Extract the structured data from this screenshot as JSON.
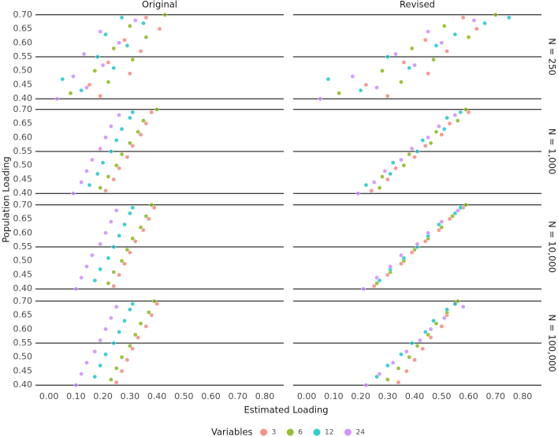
{
  "chart_data": {
    "type": "scatter",
    "xlabel": "Estimated Loading",
    "ylabel": "Population Loading",
    "columns": [
      "Original",
      "Revised"
    ],
    "xlim": [
      -0.05,
      0.87
    ],
    "ylim": [
      0.395,
      0.705
    ],
    "xticks": [
      {
        "value": 0,
        "label": "0.00"
      },
      {
        "value": 0.1,
        "label": "0.10"
      },
      {
        "value": 0.2,
        "label": "0.20"
      },
      {
        "value": 0.3,
        "label": "0.30"
      },
      {
        "value": 0.4,
        "label": "0.40"
      },
      {
        "value": 0.5,
        "label": "0.50"
      },
      {
        "value": 0.6,
        "label": "0.60"
      },
      {
        "value": 0.7,
        "label": "0.70"
      },
      {
        "value": 0.8,
        "label": "0.80"
      }
    ],
    "yticks": [
      {
        "value": 0.4,
        "label": "0.40"
      },
      {
        "value": 0.45,
        "label": "0.45"
      },
      {
        "value": 0.5,
        "label": "0.50"
      },
      {
        "value": 0.55,
        "label": "0.55"
      },
      {
        "value": 0.6,
        "label": "0.60"
      },
      {
        "value": 0.65,
        "label": "0.65"
      },
      {
        "value": 0.7,
        "label": "0.70"
      }
    ],
    "hlines": [
      0.4,
      0.55,
      0.7
    ],
    "legend": {
      "title": "Variables",
      "position": "bottom",
      "series": [
        {
          "name": "3",
          "color": "#f8766d"
        },
        {
          "name": "6",
          "color": "#7cae00"
        },
        {
          "name": "12",
          "color": "#00bfc4"
        },
        {
          "name": "24",
          "color": "#c77cff"
        }
      ]
    },
    "rows": [
      {
        "label": "N = 250",
        "panels": [
          {
            "series": [
              {
                "x": [
                  0.19,
                  0.15,
                  0.3,
                  0.22,
                  0.34,
                  0.28,
                  0.41,
                  0.36
                ],
                "y": [
                  0.41,
                  0.45,
                  0.49,
                  0.53,
                  0.57,
                  0.61,
                  0.65,
                  0.69
                ]
              },
              {
                "x": [
                  0.08,
                  0.22,
                  0.17,
                  0.31,
                  0.24,
                  0.36,
                  0.3,
                  0.43
                ],
                "y": [
                  0.42,
                  0.46,
                  0.5,
                  0.54,
                  0.58,
                  0.62,
                  0.66,
                  0.7
                ]
              },
              {
                "x": [
                  0.12,
                  0.05,
                  0.24,
                  0.18,
                  0.29,
                  0.21,
                  0.35,
                  0.27
                ],
                "y": [
                  0.43,
                  0.47,
                  0.51,
                  0.55,
                  0.59,
                  0.63,
                  0.67,
                  0.69
                ]
              },
              {
                "x": [
                  0.03,
                  0.14,
                  0.09,
                  0.2,
                  0.13,
                  0.26,
                  0.19,
                  0.32
                ],
                "y": [
                  0.4,
                  0.44,
                  0.48,
                  0.52,
                  0.56,
                  0.6,
                  0.64,
                  0.68
                ]
              }
            ]
          },
          {
            "series": [
              {
                "x": [
                  0.3,
                  0.22,
                  0.45,
                  0.36,
                  0.52,
                  0.44,
                  0.63,
                  0.58
                ],
                "y": [
                  0.41,
                  0.45,
                  0.49,
                  0.53,
                  0.57,
                  0.61,
                  0.65,
                  0.69
                ]
              },
              {
                "x": [
                  0.12,
                  0.35,
                  0.28,
                  0.47,
                  0.39,
                  0.6,
                  0.51,
                  0.7
                ],
                "y": [
                  0.42,
                  0.46,
                  0.5,
                  0.54,
                  0.58,
                  0.62,
                  0.66,
                  0.7
                ]
              },
              {
                "x": [
                  0.2,
                  0.08,
                  0.38,
                  0.3,
                  0.48,
                  0.55,
                  0.66,
                  0.75
                ],
                "y": [
                  0.43,
                  0.47,
                  0.51,
                  0.55,
                  0.59,
                  0.63,
                  0.67,
                  0.69
                ]
              },
              {
                "x": [
                  0.05,
                  0.26,
                  0.17,
                  0.4,
                  0.33,
                  0.5,
                  0.45,
                  0.62
                ],
                "y": [
                  0.4,
                  0.44,
                  0.48,
                  0.52,
                  0.56,
                  0.6,
                  0.64,
                  0.68
                ]
              }
            ]
          }
        ]
      },
      {
        "label": "N = 1,000",
        "panels": [
          {
            "series": [
              {
                "x": [
                  0.21,
                  0.24,
                  0.26,
                  0.29,
                  0.31,
                  0.34,
                  0.36,
                  0.38
                ],
                "y": [
                  0.41,
                  0.45,
                  0.49,
                  0.53,
                  0.57,
                  0.61,
                  0.65,
                  0.69
                ]
              },
              {
                "x": [
                  0.19,
                  0.22,
                  0.25,
                  0.27,
                  0.3,
                  0.33,
                  0.35,
                  0.4
                ],
                "y": [
                  0.42,
                  0.46,
                  0.5,
                  0.54,
                  0.58,
                  0.62,
                  0.66,
                  0.7
                ]
              },
              {
                "x": [
                  0.15,
                  0.18,
                  0.2,
                  0.23,
                  0.25,
                  0.27,
                  0.3,
                  0.31
                ],
                "y": [
                  0.43,
                  0.47,
                  0.51,
                  0.55,
                  0.59,
                  0.63,
                  0.67,
                  0.69
                ]
              },
              {
                "x": [
                  0.09,
                  0.12,
                  0.14,
                  0.16,
                  0.19,
                  0.21,
                  0.23,
                  0.26
                ],
                "y": [
                  0.4,
                  0.44,
                  0.48,
                  0.52,
                  0.56,
                  0.6,
                  0.64,
                  0.68
                ]
              }
            ]
          },
          {
            "series": [
              {
                "x": [
                  0.24,
                  0.3,
                  0.33,
                  0.4,
                  0.44,
                  0.5,
                  0.53,
                  0.6
                ],
                "y": [
                  0.41,
                  0.45,
                  0.49,
                  0.53,
                  0.57,
                  0.61,
                  0.65,
                  0.69
                ]
              },
              {
                "x": [
                  0.27,
                  0.28,
                  0.36,
                  0.38,
                  0.46,
                  0.48,
                  0.56,
                  0.59
                ],
                "y": [
                  0.42,
                  0.46,
                  0.5,
                  0.54,
                  0.58,
                  0.62,
                  0.66,
                  0.7
                ]
              },
              {
                "x": [
                  0.22,
                  0.31,
                  0.32,
                  0.41,
                  0.43,
                  0.51,
                  0.52,
                  0.57
                ],
                "y": [
                  0.43,
                  0.47,
                  0.51,
                  0.55,
                  0.59,
                  0.63,
                  0.67,
                  0.69
                ]
              },
              {
                "x": [
                  0.19,
                  0.25,
                  0.29,
                  0.35,
                  0.39,
                  0.45,
                  0.49,
                  0.55
                ],
                "y": [
                  0.4,
                  0.44,
                  0.48,
                  0.52,
                  0.56,
                  0.6,
                  0.64,
                  0.68
                ]
              }
            ]
          }
        ]
      },
      {
        "label": "N = 10,000",
        "panels": [
          {
            "series": [
              {
                "x": [
                  0.24,
                  0.26,
                  0.28,
                  0.3,
                  0.32,
                  0.35,
                  0.37,
                  0.39
                ],
                "y": [
                  0.41,
                  0.45,
                  0.49,
                  0.53,
                  0.57,
                  0.61,
                  0.65,
                  0.69
                ]
              },
              {
                "x": [
                  0.22,
                  0.24,
                  0.27,
                  0.29,
                  0.31,
                  0.34,
                  0.36,
                  0.38
                ],
                "y": [
                  0.42,
                  0.46,
                  0.5,
                  0.54,
                  0.58,
                  0.62,
                  0.66,
                  0.7
                ]
              },
              {
                "x": [
                  0.17,
                  0.19,
                  0.22,
                  0.24,
                  0.26,
                  0.28,
                  0.3,
                  0.31
                ],
                "y": [
                  0.43,
                  0.47,
                  0.51,
                  0.55,
                  0.59,
                  0.63,
                  0.67,
                  0.69
                ]
              },
              {
                "x": [
                  0.1,
                  0.12,
                  0.14,
                  0.16,
                  0.19,
                  0.21,
                  0.23,
                  0.25
                ],
                "y": [
                  0.4,
                  0.44,
                  0.48,
                  0.52,
                  0.56,
                  0.6,
                  0.64,
                  0.68
                ]
              }
            ]
          },
          {
            "series": [
              {
                "x": [
                  0.25,
                  0.3,
                  0.35,
                  0.39,
                  0.44,
                  0.49,
                  0.53,
                  0.58
                ],
                "y": [
                  0.41,
                  0.45,
                  0.49,
                  0.53,
                  0.57,
                  0.61,
                  0.65,
                  0.69
                ]
              },
              {
                "x": [
                  0.26,
                  0.31,
                  0.36,
                  0.4,
                  0.45,
                  0.5,
                  0.54,
                  0.59
                ],
                "y": [
                  0.42,
                  0.46,
                  0.5,
                  0.54,
                  0.58,
                  0.62,
                  0.66,
                  0.7
                ]
              },
              {
                "x": [
                  0.27,
                  0.31,
                  0.36,
                  0.41,
                  0.45,
                  0.49,
                  0.55,
                  0.57
                ],
                "y": [
                  0.43,
                  0.47,
                  0.51,
                  0.55,
                  0.59,
                  0.63,
                  0.67,
                  0.69
                ]
              },
              {
                "x": [
                  0.21,
                  0.26,
                  0.31,
                  0.35,
                  0.41,
                  0.45,
                  0.5,
                  0.56
                ],
                "y": [
                  0.4,
                  0.44,
                  0.48,
                  0.52,
                  0.56,
                  0.6,
                  0.64,
                  0.68
                ]
              }
            ]
          }
        ]
      },
      {
        "label": "N = 100,000",
        "panels": [
          {
            "series": [
              {
                "x": [
                  0.25,
                  0.27,
                  0.29,
                  0.31,
                  0.33,
                  0.36,
                  0.38,
                  0.4
                ],
                "y": [
                  0.41,
                  0.45,
                  0.49,
                  0.53,
                  0.57,
                  0.61,
                  0.65,
                  0.69
                ]
              },
              {
                "x": [
                  0.23,
                  0.25,
                  0.27,
                  0.3,
                  0.32,
                  0.34,
                  0.37,
                  0.39
                ],
                "y": [
                  0.42,
                  0.46,
                  0.5,
                  0.54,
                  0.58,
                  0.62,
                  0.66,
                  0.7
                ]
              },
              {
                "x": [
                  0.17,
                  0.19,
                  0.21,
                  0.24,
                  0.26,
                  0.28,
                  0.3,
                  0.31
                ],
                "y": [
                  0.43,
                  0.47,
                  0.51,
                  0.55,
                  0.59,
                  0.63,
                  0.67,
                  0.69
                ]
              },
              {
                "x": [
                  0.1,
                  0.12,
                  0.14,
                  0.17,
                  0.19,
                  0.21,
                  0.23,
                  0.25
                ],
                "y": [
                  0.4,
                  0.44,
                  0.48,
                  0.52,
                  0.56,
                  0.6,
                  0.64,
                  0.68
                ]
              }
            ]
          },
          {
            "series": [
              {
                "x": [
                  0.34,
                  0.37,
                  0.4,
                  0.43,
                  0.46,
                  0.5,
                  0.52,
                  0.55
                ],
                "y": [
                  0.41,
                  0.45,
                  0.49,
                  0.53,
                  0.57,
                  0.61,
                  0.65,
                  0.69
                ]
              },
              {
                "x": [
                  0.3,
                  0.34,
                  0.38,
                  0.41,
                  0.45,
                  0.48,
                  0.52,
                  0.56
                ],
                "y": [
                  0.42,
                  0.46,
                  0.5,
                  0.54,
                  0.58,
                  0.62,
                  0.66,
                  0.7
                ]
              },
              {
                "x": [
                  0.26,
                  0.3,
                  0.35,
                  0.39,
                  0.44,
                  0.47,
                  0.52,
                  0.55
                ],
                "y": [
                  0.43,
                  0.47,
                  0.51,
                  0.55,
                  0.59,
                  0.63,
                  0.67,
                  0.69
                ]
              },
              {
                "x": [
                  0.22,
                  0.27,
                  0.32,
                  0.37,
                  0.42,
                  0.46,
                  0.51,
                  0.58
                ],
                "y": [
                  0.4,
                  0.44,
                  0.48,
                  0.52,
                  0.56,
                  0.6,
                  0.64,
                  0.68
                ]
              }
            ]
          }
        ]
      }
    ]
  }
}
